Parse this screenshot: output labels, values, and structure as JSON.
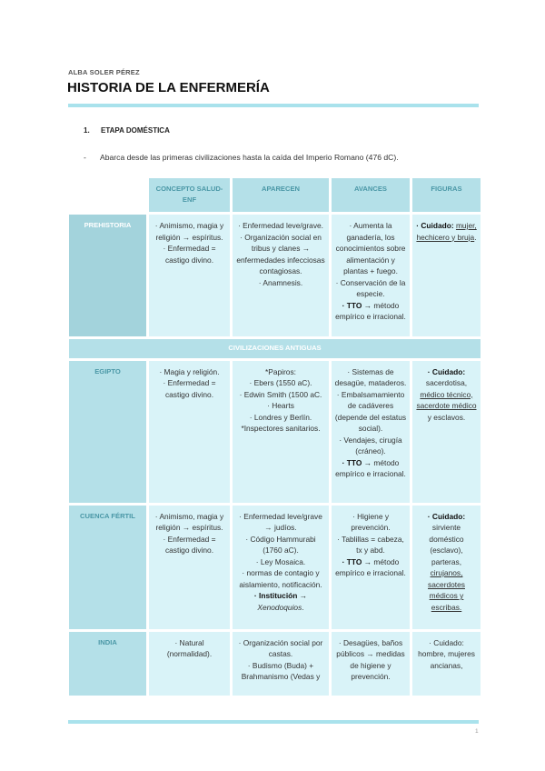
{
  "header": {
    "author": "ALBA SOLER PÉREZ",
    "title": "HISTORIA DE LA ENFERMERÍA"
  },
  "section": {
    "number": "1.",
    "title": "ETAPA DOMÉSTICA"
  },
  "intro": {
    "dash": "-",
    "text": "Abarca desde las primeras civilizaciones hasta la caída del Imperio Romano (476 dC)."
  },
  "colors": {
    "accent": "#a9e2ec",
    "header_cell": "#b4e0e8",
    "row_head": "#a3d3dc",
    "cell": "#d9f3f8"
  },
  "table": {
    "columns": [
      "CONCEPTO SALUD-ENF",
      "APARECEN",
      "AVANCES",
      "FIGURAS"
    ],
    "divider": "CIVILIZACIONES ANTIGUAS",
    "rows": [
      {
        "label": "PREHISTORIA",
        "cells": [
          [
            [
              {
                "t": "· Animismo, magia y religión → espíritus."
              }
            ],
            [
              {
                "t": "· Enfermedad = castigo divino."
              }
            ]
          ],
          [
            [
              {
                "t": "· Enfermedad leve/grave."
              }
            ],
            [
              {
                "t": "· Organización social en tribus y clanes → enfermedades infecciosas contagiosas."
              }
            ],
            [
              {
                "t": "· Anamnesis."
              }
            ]
          ],
          [
            [
              {
                "t": "· Aumenta la ganadería, los conocimientos sobre alimentación y plantas + fuego."
              }
            ],
            [
              {
                "t": "· Conservación de la especie."
              }
            ],
            [
              {
                "t": "· TTO →",
                "s": "b"
              },
              {
                "t": " método empírico e irracional."
              }
            ]
          ],
          [
            [
              {
                "t": "· Cuidado:",
                "s": "b"
              },
              {
                "t": " "
              },
              {
                "t": "mujer, hechicero y bruja",
                "s": "u"
              },
              {
                "t": "."
              }
            ]
          ]
        ]
      },
      {
        "label": "EGIPTO",
        "cells": [
          [
            [
              {
                "t": "· Magia y religión."
              }
            ],
            [
              {
                "t": "· Enfermedad = castigo divino."
              }
            ]
          ],
          [
            [
              {
                "t": "*Papiros:"
              }
            ],
            [
              {
                "t": "· Ebers (1550 aC)."
              }
            ],
            [
              {
                "t": "· Edwin Smith (1500 aC."
              }
            ],
            [
              {
                "t": "· Hearts"
              }
            ],
            [
              {
                "t": "· Londres y Berlín."
              }
            ],
            [
              {
                "t": "*Inspectores sanitarios."
              }
            ]
          ],
          [
            [
              {
                "t": "· Sistemas de desagüe, mataderos."
              }
            ],
            [
              {
                "t": "· Embalsamamiento de cadáveres (depende del estatus social)."
              }
            ],
            [
              {
                "t": "· Vendajes, cirugía (cráneo)."
              }
            ],
            [
              {
                "t": "· TTO →",
                "s": "b"
              },
              {
                "t": " método empírico e irracional."
              }
            ]
          ],
          [
            [
              {
                "t": "· Cuidado:",
                "s": "b"
              },
              {
                "t": " sacerdotisa, "
              },
              {
                "t": "médico técnico, sacerdote médico",
                "s": "u"
              },
              {
                "t": " y esclavos."
              }
            ]
          ]
        ]
      },
      {
        "label": "CUENCA FÉRTIL",
        "cells": [
          [
            [
              {
                "t": "· Animismo, magia y religión → espíritus."
              }
            ],
            [
              {
                "t": "· Enfermedad = castigo divino."
              }
            ]
          ],
          [
            [
              {
                "t": "· Enfermedad leve/grave → judíos."
              }
            ],
            [
              {
                "t": "· Código Hammurabi (1760 aC)."
              }
            ],
            [
              {
                "t": "· Ley Mosaica."
              }
            ],
            [
              {
                "t": "· normas de contagio y aislamiento, notificación."
              }
            ],
            [
              {
                "t": "· Institución →",
                "s": "b"
              },
              {
                "t": " "
              },
              {
                "t": "Xenodoquios",
                "s": "i"
              },
              {
                "t": "."
              }
            ]
          ],
          [
            [
              {
                "t": "· Higiene y prevención."
              }
            ],
            [
              {
                "t": "· Tablillas = cabeza, tx y abd."
              }
            ],
            [
              {
                "t": "· TTO →",
                "s": "b"
              },
              {
                "t": " método empírico e irracional."
              }
            ]
          ],
          [
            [
              {
                "t": "· Cuidado:",
                "s": "b"
              },
              {
                "t": " sirviente doméstico (esclavo), parteras, "
              },
              {
                "t": "cirujanos, sacerdotes médicos y escribas.",
                "s": "u"
              }
            ]
          ]
        ]
      },
      {
        "label": "INDIA",
        "cells": [
          [
            [
              {
                "t": "· Natural (normalidad)."
              }
            ]
          ],
          [
            [
              {
                "t": "· Organización social por castas."
              }
            ],
            [
              {
                "t": "· Budismo (Buda) + Brahmanismo (Vedas y"
              }
            ]
          ],
          [
            [
              {
                "t": "· Desagües, baños públicos → medidas de higiene y prevención."
              }
            ]
          ],
          [
            [
              {
                "t": "· Cuidado: hombre, mujeres ancianas,"
              }
            ]
          ]
        ]
      }
    ]
  },
  "footer": {
    "page": "1"
  }
}
